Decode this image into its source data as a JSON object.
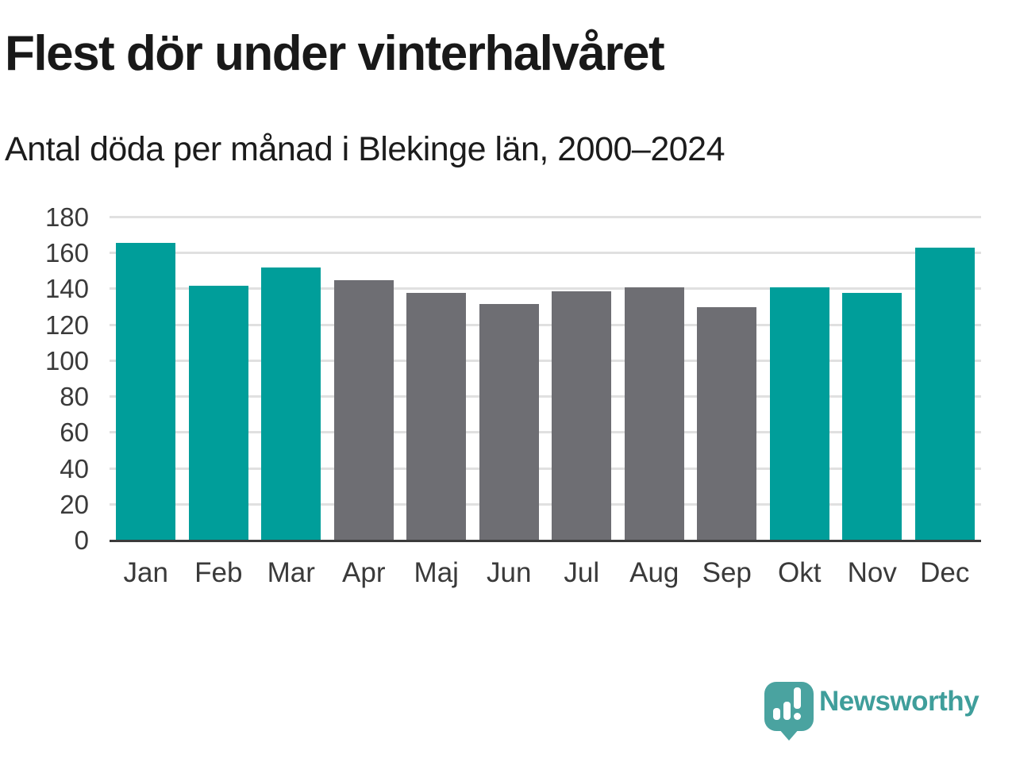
{
  "header": {
    "title": "Flest dör under vinterhalvåret",
    "subtitle": "Antal döda per månad i Blekinge län, 2000–2024"
  },
  "chart_data": {
    "type": "bar",
    "title": "Flest dör under vinterhalvåret",
    "subtitle": "Antal döda per månad i Blekinge län, 2000–2024",
    "categories": [
      "Jan",
      "Feb",
      "Mar",
      "Apr",
      "Maj",
      "Jun",
      "Jul",
      "Aug",
      "Sep",
      "Okt",
      "Nov",
      "Dec"
    ],
    "values": [
      166,
      142,
      152,
      145,
      138,
      132,
      139,
      141,
      130,
      141,
      138,
      163
    ],
    "bar_color_keys": [
      "winter",
      "winter",
      "winter",
      "summer",
      "summer",
      "summer",
      "summer",
      "summer",
      "summer",
      "winter",
      "winter",
      "winter"
    ],
    "color_map": {
      "winter": "#009e9a",
      "summer": "#6e6e73"
    },
    "xlabel": "",
    "ylabel": "",
    "ylim": [
      0,
      180
    ],
    "yticks": [
      0,
      20,
      40,
      60,
      80,
      100,
      120,
      140,
      160,
      180
    ],
    "grid": true,
    "legend_position": "none"
  },
  "footer": {
    "brand_name": "Newsworthy"
  },
  "colors": {
    "accent_teal": "#009e9a",
    "muted_gray": "#6e6e73",
    "logo_teal": "#4aa3a0",
    "wordmark_teal": "#3f9e9b",
    "gridline": "#e0e0e0",
    "axis": "#3b3b3b",
    "text": "#191919"
  }
}
